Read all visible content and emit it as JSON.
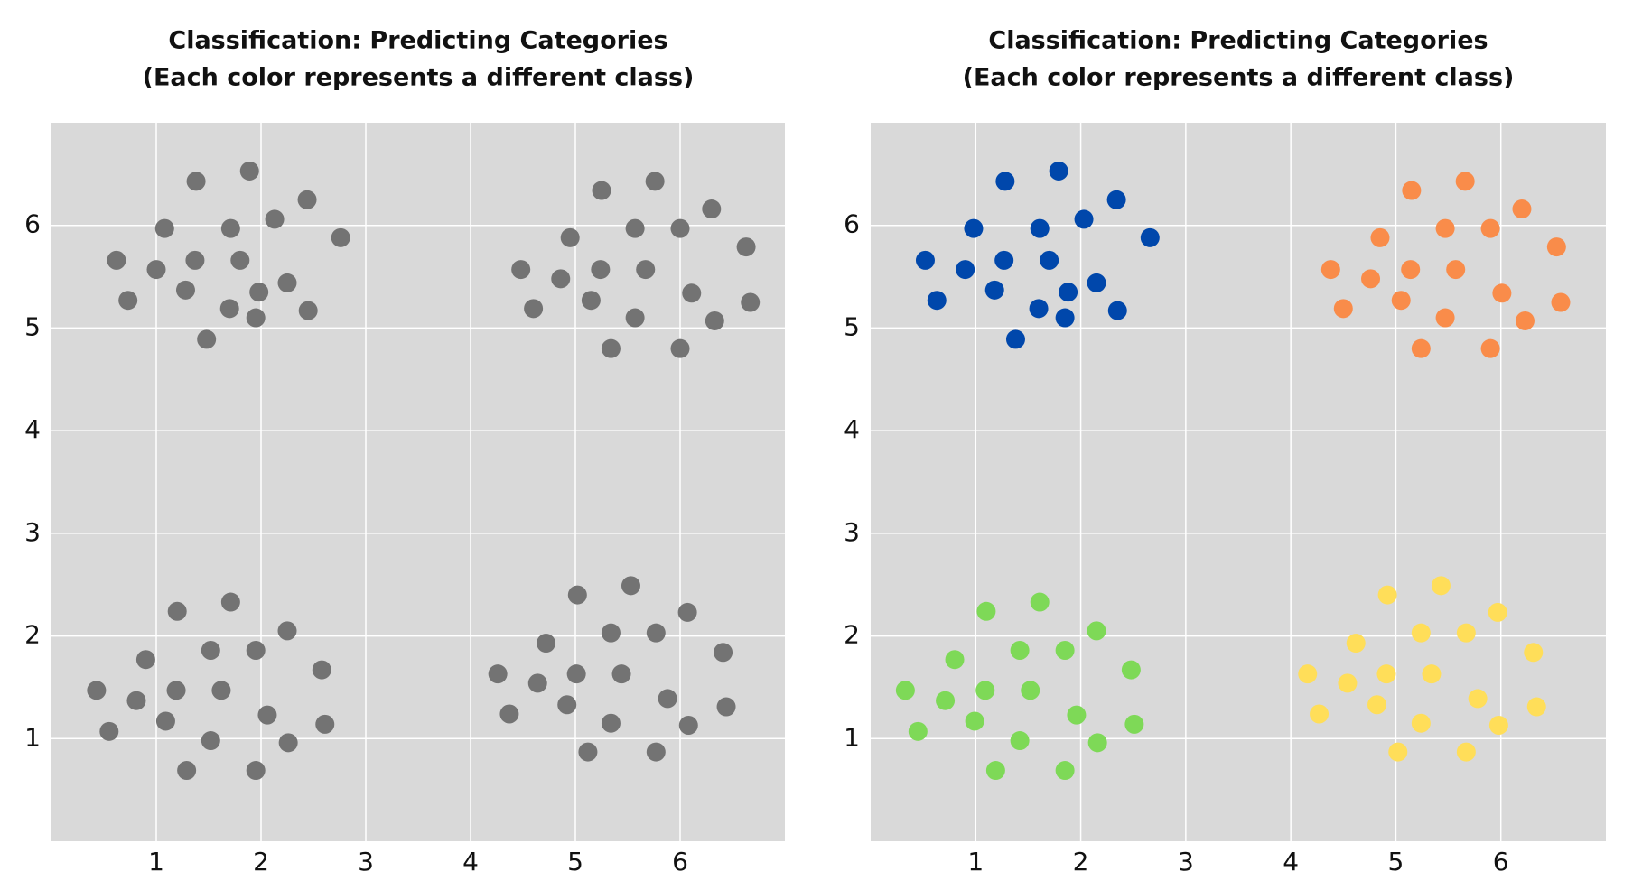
{
  "chart_data": [
    {
      "type": "scatter",
      "title": "Classification: Predicting Categories",
      "subtitle": "(Each color represents a different class)",
      "xlim": [
        0,
        7
      ],
      "ylim": [
        0,
        7
      ],
      "xticks": [
        1,
        2,
        3,
        4,
        5,
        6
      ],
      "yticks": [
        1,
        2,
        3,
        4,
        5,
        6
      ],
      "grid": true,
      "series": [
        {
          "color": "#737373",
          "x": [
            1.38,
            1.89,
            1.08,
            1.71,
            2.13,
            2.44,
            2.76,
            0.62,
            1.0,
            1.37,
            1.8,
            1.28,
            0.73,
            1.98,
            2.25,
            1.7,
            1.95,
            2.45,
            1.48
          ],
          "y": [
            6.43,
            6.53,
            5.97,
            5.97,
            6.06,
            6.25,
            5.88,
            5.66,
            5.57,
            5.66,
            5.66,
            5.37,
            5.27,
            5.35,
            5.44,
            5.19,
            5.1,
            5.17,
            4.89
          ]
        },
        {
          "color": "#737373",
          "x": [
            5.25,
            5.76,
            5.57,
            6.0,
            6.3,
            6.63,
            4.95,
            4.48,
            4.86,
            5.24,
            5.67,
            6.11,
            6.67,
            4.6,
            5.15,
            5.57,
            6.33,
            5.34,
            6.0
          ],
          "y": [
            6.34,
            6.43,
            5.97,
            5.97,
            6.16,
            5.79,
            5.88,
            5.57,
            5.48,
            5.57,
            5.57,
            5.34,
            5.25,
            5.19,
            5.27,
            5.1,
            5.07,
            4.8,
            4.8
          ]
        },
        {
          "color": "#737373",
          "x": [
            1.2,
            1.71,
            2.25,
            0.9,
            1.52,
            1.95,
            2.58,
            0.43,
            1.19,
            1.62,
            0.81,
            1.09,
            2.06,
            2.61,
            0.55,
            1.52,
            2.26,
            1.29,
            1.95
          ],
          "y": [
            2.24,
            2.33,
            2.05,
            1.77,
            1.86,
            1.86,
            1.67,
            1.47,
            1.47,
            1.47,
            1.37,
            1.17,
            1.23,
            1.14,
            1.07,
            0.98,
            0.96,
            0.69,
            0.69
          ]
        },
        {
          "color": "#737373",
          "x": [
            5.02,
            5.53,
            6.07,
            4.72,
            5.34,
            5.77,
            6.41,
            4.26,
            5.01,
            5.44,
            4.64,
            4.92,
            5.88,
            4.37,
            5.34,
            6.08,
            6.44,
            5.12,
            5.77
          ],
          "y": [
            2.4,
            2.49,
            2.23,
            1.93,
            2.03,
            2.03,
            1.84,
            1.63,
            1.63,
            1.63,
            1.54,
            1.33,
            1.39,
            1.24,
            1.15,
            1.13,
            1.31,
            0.87,
            0.87
          ]
        }
      ]
    },
    {
      "type": "scatter",
      "title": "Classification: Predicting Categories",
      "subtitle": "(Each color represents a different class)",
      "xlim": [
        0,
        7
      ],
      "ylim": [
        0,
        7
      ],
      "xticks": [
        1,
        2,
        3,
        4,
        5,
        6
      ],
      "yticks": [
        1,
        2,
        3,
        4,
        5,
        6
      ],
      "grid": true,
      "series": [
        {
          "color": "#0047ab",
          "x": [
            1.28,
            1.79,
            0.98,
            1.61,
            2.03,
            2.34,
            2.66,
            0.52,
            0.9,
            1.27,
            1.7,
            1.18,
            0.63,
            1.88,
            2.15,
            1.6,
            1.85,
            2.35,
            1.38
          ],
          "y": [
            6.43,
            6.53,
            5.97,
            5.97,
            6.06,
            6.25,
            5.88,
            5.66,
            5.57,
            5.66,
            5.66,
            5.37,
            5.27,
            5.35,
            5.44,
            5.19,
            5.1,
            5.17,
            4.89
          ]
        },
        {
          "color": "#f98c4a",
          "x": [
            5.15,
            5.66,
            5.47,
            5.9,
            6.2,
            6.53,
            4.85,
            4.38,
            4.76,
            5.14,
            5.57,
            6.01,
            6.57,
            4.5,
            5.05,
            5.47,
            6.23,
            5.24,
            5.9
          ],
          "y": [
            6.34,
            6.43,
            5.97,
            5.97,
            6.16,
            5.79,
            5.88,
            5.57,
            5.48,
            5.57,
            5.57,
            5.34,
            5.25,
            5.19,
            5.27,
            5.1,
            5.07,
            4.8,
            4.8
          ]
        },
        {
          "color": "#7ed957",
          "x": [
            1.1,
            1.61,
            2.15,
            0.8,
            1.42,
            1.85,
            2.48,
            0.33,
            1.09,
            1.52,
            0.71,
            0.99,
            1.96,
            2.51,
            0.45,
            1.42,
            2.16,
            1.19,
            1.85
          ],
          "y": [
            2.24,
            2.33,
            2.05,
            1.77,
            1.86,
            1.86,
            1.67,
            1.47,
            1.47,
            1.47,
            1.37,
            1.17,
            1.23,
            1.14,
            1.07,
            0.98,
            0.96,
            0.69,
            0.69
          ]
        },
        {
          "color": "#ffde59",
          "x": [
            4.92,
            5.43,
            5.97,
            4.62,
            5.24,
            5.67,
            6.31,
            4.16,
            4.91,
            5.34,
            4.54,
            4.82,
            5.78,
            4.27,
            5.24,
            5.98,
            6.34,
            5.02,
            5.67
          ],
          "y": [
            2.4,
            2.49,
            2.23,
            1.93,
            2.03,
            2.03,
            1.84,
            1.63,
            1.63,
            1.63,
            1.54,
            1.33,
            1.39,
            1.24,
            1.15,
            1.13,
            1.31,
            0.87,
            0.87
          ]
        }
      ]
    }
  ]
}
